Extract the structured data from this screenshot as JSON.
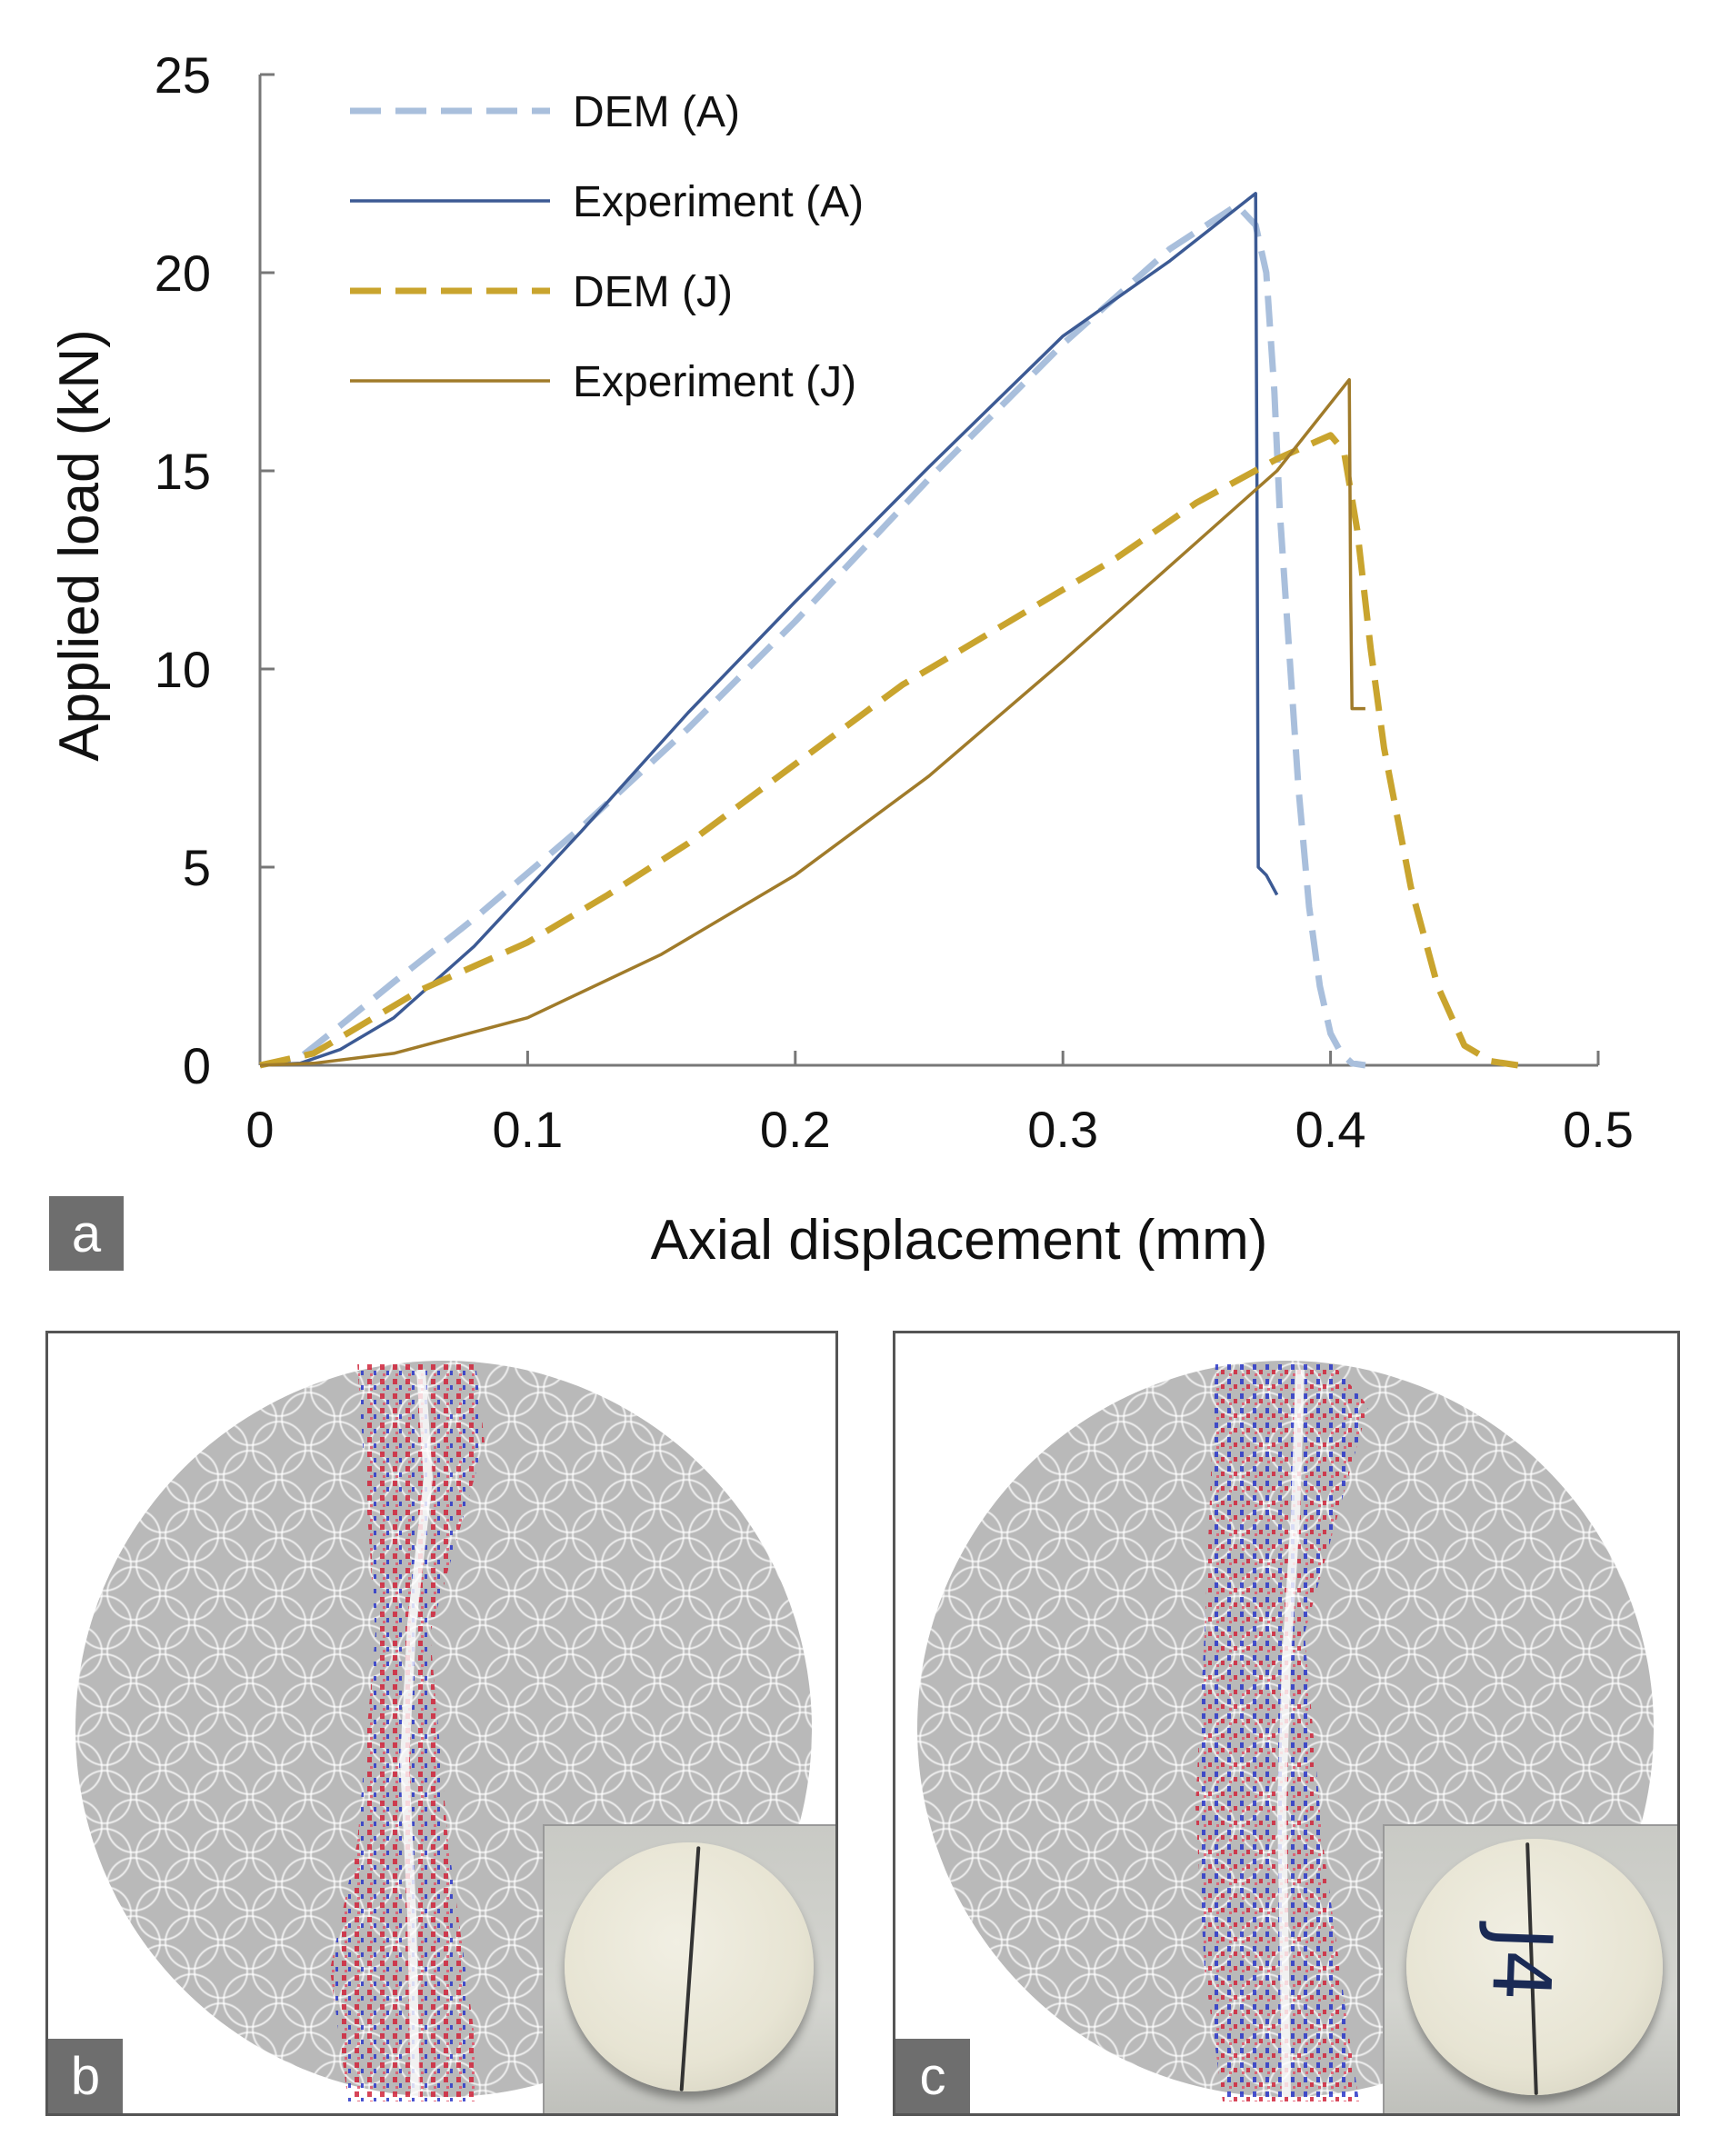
{
  "chart_data": {
    "type": "line",
    "xlabel": "Axial displacement (mm)",
    "ylabel": "Applied load (kN)",
    "xlim": [
      0,
      0.5
    ],
    "ylim": [
      0,
      25
    ],
    "xticks": [
      0,
      0.1,
      0.2,
      0.3,
      0.4,
      0.5
    ],
    "xtick_labels": [
      "0",
      "0.1",
      "0.2",
      "0.3",
      "0.4",
      "0.5"
    ],
    "yticks": [
      0,
      5,
      10,
      15,
      20,
      25
    ],
    "ytick_labels": [
      "0",
      "5",
      "10",
      "15",
      "20",
      "25"
    ],
    "legend_position": "top-left",
    "grid": false,
    "series": [
      {
        "name": "DEM (A)",
        "color": "#a9bfdc",
        "style": "dashed",
        "x": [
          0,
          0.015,
          0.03,
          0.05,
          0.08,
          0.12,
          0.16,
          0.2,
          0.25,
          0.3,
          0.34,
          0.365,
          0.372,
          0.376,
          0.379,
          0.381,
          0.384,
          0.388,
          0.392,
          0.396,
          0.4,
          0.404,
          0.408,
          0.413
        ],
        "y": [
          0,
          0.2,
          1.0,
          2.1,
          3.7,
          6.0,
          8.5,
          11.2,
          14.8,
          18.2,
          20.6,
          21.7,
          21.2,
          20.0,
          17.0,
          14.0,
          11.0,
          7.0,
          4.0,
          2.0,
          0.8,
          0.3,
          0.05,
          0
        ]
      },
      {
        "name": "Experiment (A)",
        "color": "#3c5a94",
        "style": "solid",
        "x": [
          0,
          0.015,
          0.03,
          0.05,
          0.08,
          0.12,
          0.16,
          0.2,
          0.25,
          0.3,
          0.34,
          0.372,
          0.3725,
          0.373,
          0.376,
          0.38
        ],
        "y": [
          0,
          0.05,
          0.4,
          1.2,
          3.0,
          5.9,
          8.9,
          11.7,
          15.1,
          18.4,
          20.3,
          22.0,
          15.0,
          5.0,
          4.8,
          4.3
        ]
      },
      {
        "name": "DEM (J)",
        "color": "#c9a42e",
        "style": "dashed",
        "x": [
          0,
          0.02,
          0.04,
          0.06,
          0.08,
          0.1,
          0.13,
          0.16,
          0.2,
          0.24,
          0.28,
          0.32,
          0.35,
          0.38,
          0.4,
          0.405,
          0.41,
          0.415,
          0.42,
          0.43,
          0.44,
          0.45,
          0.46,
          0.47
        ],
        "y": [
          0,
          0.3,
          1.1,
          1.9,
          2.5,
          3.1,
          4.3,
          5.6,
          7.6,
          9.6,
          11.2,
          12.8,
          14.2,
          15.3,
          15.9,
          15.5,
          13.5,
          10.5,
          8.0,
          4.5,
          2.0,
          0.5,
          0.1,
          0
        ]
      },
      {
        "name": "Experiment (J)",
        "color": "#a07b2a",
        "style": "solid",
        "x": [
          0,
          0.02,
          0.05,
          0.1,
          0.15,
          0.2,
          0.25,
          0.3,
          0.35,
          0.38,
          0.407,
          0.4075,
          0.408,
          0.413
        ],
        "y": [
          0,
          0.05,
          0.3,
          1.2,
          2.8,
          4.8,
          7.3,
          10.2,
          13.2,
          15.0,
          17.3,
          12.0,
          9.0,
          9.0
        ]
      }
    ]
  },
  "panel_labels": {
    "a": "a",
    "b": "b",
    "c": "c"
  },
  "panel_c": {
    "specimen_marking": "J4"
  }
}
